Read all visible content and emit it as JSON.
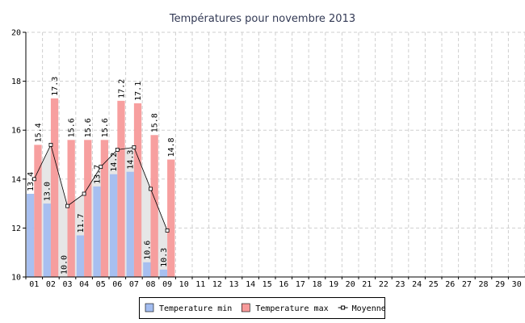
{
  "chart_data": {
    "type": "bar",
    "title": "Températures pour novembre 2013",
    "categories": [
      "01",
      "02",
      "03",
      "04",
      "05",
      "06",
      "07",
      "08",
      "09",
      "10",
      "11",
      "12",
      "13",
      "14",
      "15",
      "16",
      "17",
      "18",
      "19",
      "20",
      "21",
      "22",
      "23",
      "24",
      "25",
      "26",
      "27",
      "28",
      "29",
      "30"
    ],
    "series": [
      {
        "name": "Temperature min",
        "color": "#a3bdf0",
        "values": [
          13.4,
          13.0,
          10.0,
          11.7,
          13.7,
          14.2,
          14.3,
          10.6,
          10.3,
          null,
          null,
          null,
          null,
          null,
          null,
          null,
          null,
          null,
          null,
          null,
          null,
          null,
          null,
          null,
          null,
          null,
          null,
          null,
          null,
          null
        ],
        "value_labels": [
          "13.4",
          "13.0",
          "10.0",
          "11.7",
          "13.7",
          "14.2",
          "14.3",
          "10.6",
          "10.3",
          null,
          null,
          null,
          null,
          null,
          null,
          null,
          null,
          null,
          null,
          null,
          null,
          null,
          null,
          null,
          null,
          null,
          null,
          null,
          null,
          null
        ]
      },
      {
        "name": "Temperature max",
        "color": "#f79a9a",
        "values": [
          15.4,
          17.3,
          15.6,
          15.6,
          15.6,
          17.2,
          17.1,
          15.8,
          14.8,
          null,
          null,
          null,
          null,
          null,
          null,
          null,
          null,
          null,
          null,
          null,
          null,
          null,
          null,
          null,
          null,
          null,
          null,
          null,
          null,
          null
        ],
        "value_labels": [
          "15.4",
          "17.3",
          "15.6",
          "15.6",
          "15.6",
          "17.2",
          "17.1",
          "15.8",
          "14.8",
          null,
          null,
          null,
          null,
          null,
          null,
          null,
          null,
          null,
          null,
          null,
          null,
          null,
          null,
          null,
          null,
          null,
          null,
          null,
          null,
          null
        ]
      },
      {
        "name": "Moyenne",
        "type": "line",
        "color": "#000000",
        "fill": "#e6e6e6",
        "values": [
          14.0,
          15.4,
          12.9,
          13.4,
          14.5,
          15.2,
          15.3,
          13.6,
          11.9,
          null,
          null,
          null,
          null,
          null,
          null,
          null,
          null,
          null,
          null,
          null,
          null,
          null,
          null,
          null,
          null,
          null,
          null,
          null,
          null,
          null
        ]
      }
    ],
    "ylim": [
      10,
      20
    ],
    "yticks": [
      10,
      12,
      14,
      16,
      18,
      20
    ],
    "grid": true
  }
}
